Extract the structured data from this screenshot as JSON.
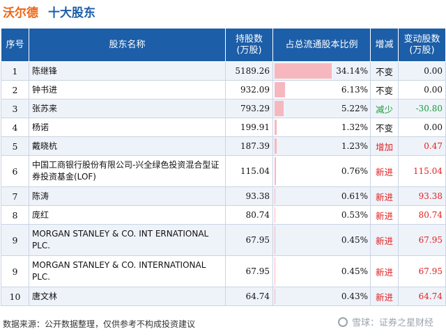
{
  "header": {
    "company": "沃尔德",
    "topic": "十大股东"
  },
  "table": {
    "columns": [
      "序号",
      "股东名称",
      "持股数\n(万股)",
      "占总流通股本比例",
      "增减",
      "变动股数\n(万股)"
    ],
    "rows": [
      {
        "no": "1",
        "name": "陈继锋",
        "shares": "5189.26",
        "ratio": "34.14%",
        "ratio_value": 34.14,
        "change": "不变",
        "change_type": "same",
        "delta": "0.00"
      },
      {
        "no": "2",
        "name": "钟书进",
        "shares": "932.09",
        "ratio": "6.13%",
        "ratio_value": 6.13,
        "change": "不变",
        "change_type": "same",
        "delta": "0.00"
      },
      {
        "no": "3",
        "name": "张苏来",
        "shares": "793.29",
        "ratio": "5.22%",
        "ratio_value": 5.22,
        "change": "减少",
        "change_type": "down",
        "delta": "-30.80"
      },
      {
        "no": "4",
        "name": "杨诺",
        "shares": "199.91",
        "ratio": "1.32%",
        "ratio_value": 1.32,
        "change": "不变",
        "change_type": "same",
        "delta": "0.00"
      },
      {
        "no": "5",
        "name": "戴晓杭",
        "shares": "187.39",
        "ratio": "1.23%",
        "ratio_value": 1.23,
        "change": "增加",
        "change_type": "up",
        "delta": "0.47"
      },
      {
        "no": "6",
        "name": "中国工商银行股份有限公司-兴全绿色投资混合型证券投资基金(LOF)",
        "shares": "115.04",
        "ratio": "0.76%",
        "ratio_value": 0.76,
        "change": "新进",
        "change_type": "up",
        "delta": "115.04"
      },
      {
        "no": "7",
        "name": "陈涛",
        "shares": "93.38",
        "ratio": "0.61%",
        "ratio_value": 0.61,
        "change": "新进",
        "change_type": "up",
        "delta": "93.38"
      },
      {
        "no": "8",
        "name": "庞红",
        "shares": "80.74",
        "ratio": "0.53%",
        "ratio_value": 0.53,
        "change": "新进",
        "change_type": "up",
        "delta": "80.74"
      },
      {
        "no": "9",
        "name": "MORGAN STANLEY & CO. INT ERNATIONAL PLC.",
        "shares": "67.95",
        "ratio": "0.45%",
        "ratio_value": 0.45,
        "change": "新进",
        "change_type": "up",
        "delta": "67.95"
      },
      {
        "no": "9",
        "name": "MORGAN STANLEY & CO. INTERNATIONAL PLC.",
        "shares": "67.95",
        "ratio": "0.45%",
        "ratio_value": 0.45,
        "change": "新进",
        "change_type": "up",
        "delta": "67.95"
      },
      {
        "no": "10",
        "name": "唐文林",
        "shares": "64.74",
        "ratio": "0.43%",
        "ratio_value": 0.43,
        "change": "新进",
        "change_type": "up",
        "delta": "64.74"
      }
    ]
  },
  "footer": {
    "source": "数据来源：公开数据整理，仅供参考不构成投资建议"
  },
  "brand": {
    "text": "雪球：证券之星财经"
  },
  "watermark": {
    "text": "证券之星"
  },
  "colors": {
    "header_bg": "#1c5ea8",
    "company": "#f06414",
    "bar": "#f7b7be",
    "up": "#e02020",
    "down": "#1a9a3a"
  }
}
